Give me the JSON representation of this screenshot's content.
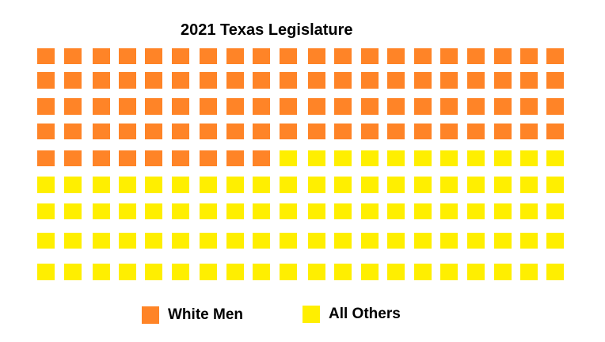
{
  "chart_data": {
    "type": "waffle",
    "title": "2021 Texas Legislature",
    "total": 181,
    "rows": 9,
    "columns": 20,
    "series": [
      {
        "name": "White Men",
        "value": 89,
        "color": "#ff8427"
      },
      {
        "name": "All Others",
        "value": 92,
        "color": "#ffef00"
      }
    ],
    "legend_position": "bottom"
  }
}
